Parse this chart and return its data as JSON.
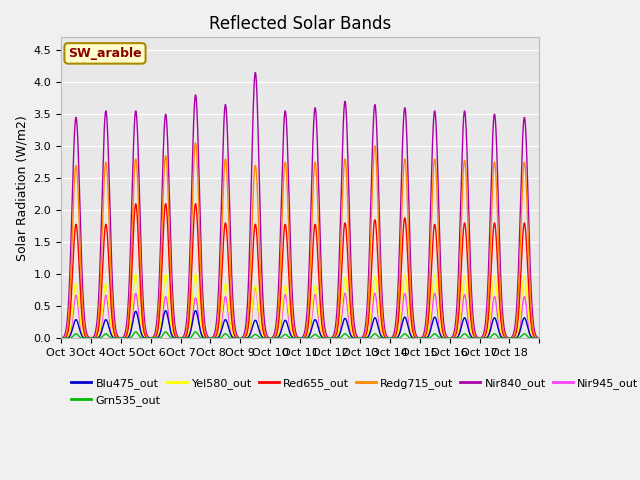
{
  "title": "Reflected Solar Bands",
  "ylabel": "Solar Radiation (W/m2)",
  "xlabel": "",
  "annotation": "SW_arable",
  "ylim": [
    0,
    4.7
  ],
  "yticks": [
    0.0,
    0.5,
    1.0,
    1.5,
    2.0,
    2.5,
    3.0,
    3.5,
    4.0,
    4.5
  ],
  "xtick_labels": [
    "Oct 3",
    "Oct 4",
    "Oct 5",
    "Oct 6",
    "Oct 7",
    "Oct 8",
    "Oct 9",
    "Oct 10",
    "Oct 11",
    "Oct 12",
    "Oct 13",
    "Oct 14",
    "Oct 15",
    "Oct 16",
    "Oct 17",
    "Oct 18"
  ],
  "series": {
    "Blu475_out": {
      "color": "#0000cc",
      "lw": 1.0
    },
    "Grn535_out": {
      "color": "#00bb00",
      "lw": 1.0
    },
    "Yel580_out": {
      "color": "#ffff00",
      "lw": 1.0
    },
    "Red655_out": {
      "color": "#ff0000",
      "lw": 1.0
    },
    "Redg715_out": {
      "color": "#ff8800",
      "lw": 1.0
    },
    "Nir840_out": {
      "color": "#aa00aa",
      "lw": 1.0
    },
    "Nir945_out": {
      "color": "#ff44ff",
      "lw": 1.0
    }
  },
  "peaks_blu": [
    0.29,
    0.29,
    0.42,
    0.43,
    0.43,
    0.29,
    0.28,
    0.28,
    0.29,
    0.31,
    0.32,
    0.33,
    0.33,
    0.32,
    0.32,
    0.32
  ],
  "peaks_grn": [
    0.07,
    0.07,
    0.1,
    0.1,
    0.1,
    0.07,
    0.06,
    0.06,
    0.06,
    0.07,
    0.07,
    0.07,
    0.07,
    0.07,
    0.07,
    0.07
  ],
  "peaks_yel": [
    0.85,
    0.85,
    1.0,
    1.0,
    1.0,
    0.85,
    0.82,
    0.82,
    0.82,
    0.95,
    0.97,
    1.0,
    1.0,
    0.97,
    0.97,
    0.97
  ],
  "peaks_red": [
    1.78,
    1.78,
    2.1,
    2.1,
    2.1,
    1.8,
    1.78,
    1.78,
    1.78,
    1.8,
    1.85,
    1.88,
    1.78,
    1.8,
    1.8,
    1.8
  ],
  "peaks_redg": [
    2.7,
    2.75,
    2.8,
    2.85,
    3.05,
    2.8,
    2.7,
    2.75,
    2.75,
    2.8,
    3.0,
    2.8,
    2.8,
    2.78,
    2.75,
    2.75
  ],
  "peaks_nir840": [
    3.45,
    3.55,
    3.55,
    3.5,
    3.8,
    3.65,
    4.15,
    3.55,
    3.6,
    3.7,
    3.65,
    3.6,
    3.55,
    3.55,
    3.5,
    3.45
  ],
  "peaks_nir945": [
    0.67,
    0.67,
    0.7,
    0.65,
    0.63,
    0.65,
    0.8,
    0.68,
    0.68,
    0.7,
    0.7,
    0.7,
    0.7,
    0.68,
    0.65,
    0.65
  ],
  "bg_color": "#f0f0f0",
  "plot_bg": "#e8e8e8",
  "title_fontsize": 12,
  "label_fontsize": 9,
  "tick_fontsize": 8
}
